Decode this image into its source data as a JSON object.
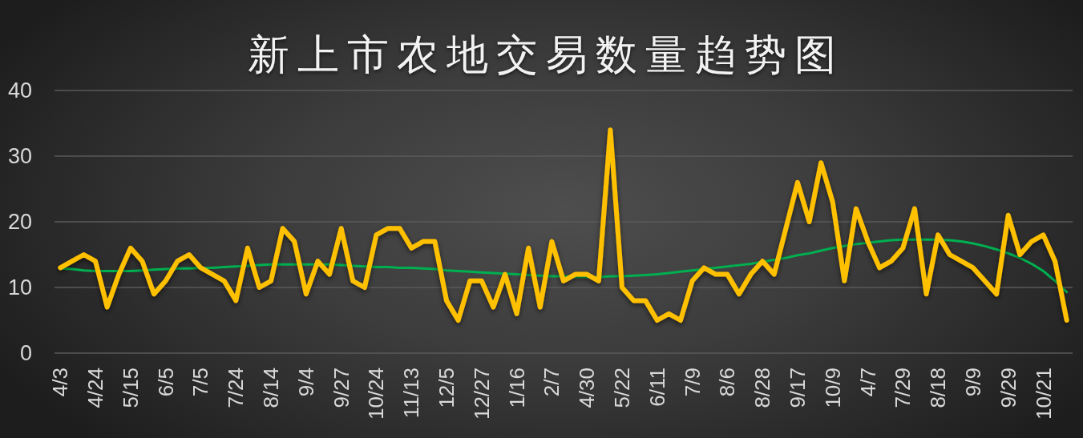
{
  "chart_data": {
    "type": "line",
    "title": "新上市农地交易数量趋势图",
    "categories": [
      "4/3",
      null,
      null,
      "4/24",
      null,
      null,
      "5/15",
      null,
      null,
      "6/5",
      null,
      null,
      "7/5",
      null,
      null,
      "7/24",
      null,
      null,
      "8/14",
      null,
      null,
      "9/4",
      null,
      null,
      "9/27",
      null,
      null,
      "10/24",
      null,
      null,
      "11/13",
      null,
      null,
      "12/5",
      null,
      null,
      "12/27",
      null,
      null,
      "1/16",
      null,
      null,
      "2/7",
      null,
      null,
      "4/30",
      null,
      null,
      "5/22",
      null,
      null,
      "6/11",
      null,
      null,
      "7/9",
      null,
      null,
      "8/6",
      null,
      null,
      "8/28",
      null,
      null,
      "9/17",
      null,
      null,
      "10/9",
      null,
      null,
      "4/7",
      null,
      null,
      "7/29",
      null,
      null,
      "8/18",
      null,
      null,
      "9/9",
      null,
      null,
      "9/29",
      null,
      null,
      "10/21",
      null,
      null
    ],
    "series": [
      {
        "color": "#ffc000",
        "values": [
          13,
          14,
          15,
          14,
          7,
          12,
          16,
          14,
          9,
          11,
          14,
          15,
          13,
          12,
          11,
          8,
          16,
          10,
          11,
          19,
          17,
          9,
          14,
          12,
          19,
          11,
          10,
          18,
          19,
          19,
          16,
          17,
          17,
          8,
          5,
          11,
          11,
          7,
          12,
          6,
          16,
          7,
          17,
          11,
          12,
          12,
          11,
          34,
          10,
          8,
          8,
          5,
          6,
          5,
          11,
          13,
          12,
          12,
          9,
          12,
          14,
          12,
          19,
          26,
          20,
          29,
          23,
          11,
          22,
          17,
          13,
          14,
          16,
          22,
          9,
          18,
          15,
          14,
          13,
          11,
          9,
          21,
          15,
          17,
          18,
          14,
          5
        ]
      },
      {
        "type": "line",
        "color": "#00b050",
        "values": [
          12.9,
          12.8,
          12.6,
          12.5,
          12.5,
          12.5,
          12.5,
          12.6,
          12.7,
          12.8,
          12.9,
          12.9,
          13.0,
          13.0,
          13.1,
          13.2,
          13.3,
          13.4,
          13.5,
          13.5,
          13.5,
          13.5,
          13.5,
          13.5,
          13.4,
          13.3,
          13.2,
          13.1,
          13.1,
          13.0,
          13.0,
          12.9,
          12.8,
          12.6,
          12.5,
          12.4,
          12.3,
          12.2,
          12.1,
          12.0,
          11.9,
          11.8,
          11.7,
          11.7,
          11.6,
          11.6,
          11.6,
          11.7,
          11.7,
          11.8,
          11.9,
          12.0,
          12.2,
          12.4,
          12.6,
          12.8,
          13.0,
          13.2,
          13.4,
          13.6,
          13.9,
          14.2,
          14.5,
          14.9,
          15.2,
          15.6,
          16.0,
          16.3,
          16.6,
          16.8,
          17.0,
          17.2,
          17.3,
          17.3,
          17.3,
          17.3,
          17.2,
          17.0,
          16.7,
          16.3,
          15.8,
          15.2,
          14.5,
          13.6,
          12.5,
          11.0,
          9.3
        ]
      }
    ],
    "ylim": [
      0,
      40
    ],
    "yticks": [
      0,
      10,
      20,
      30,
      40
    ],
    "grid": "y",
    "marker": "none",
    "line_style": "solid"
  }
}
